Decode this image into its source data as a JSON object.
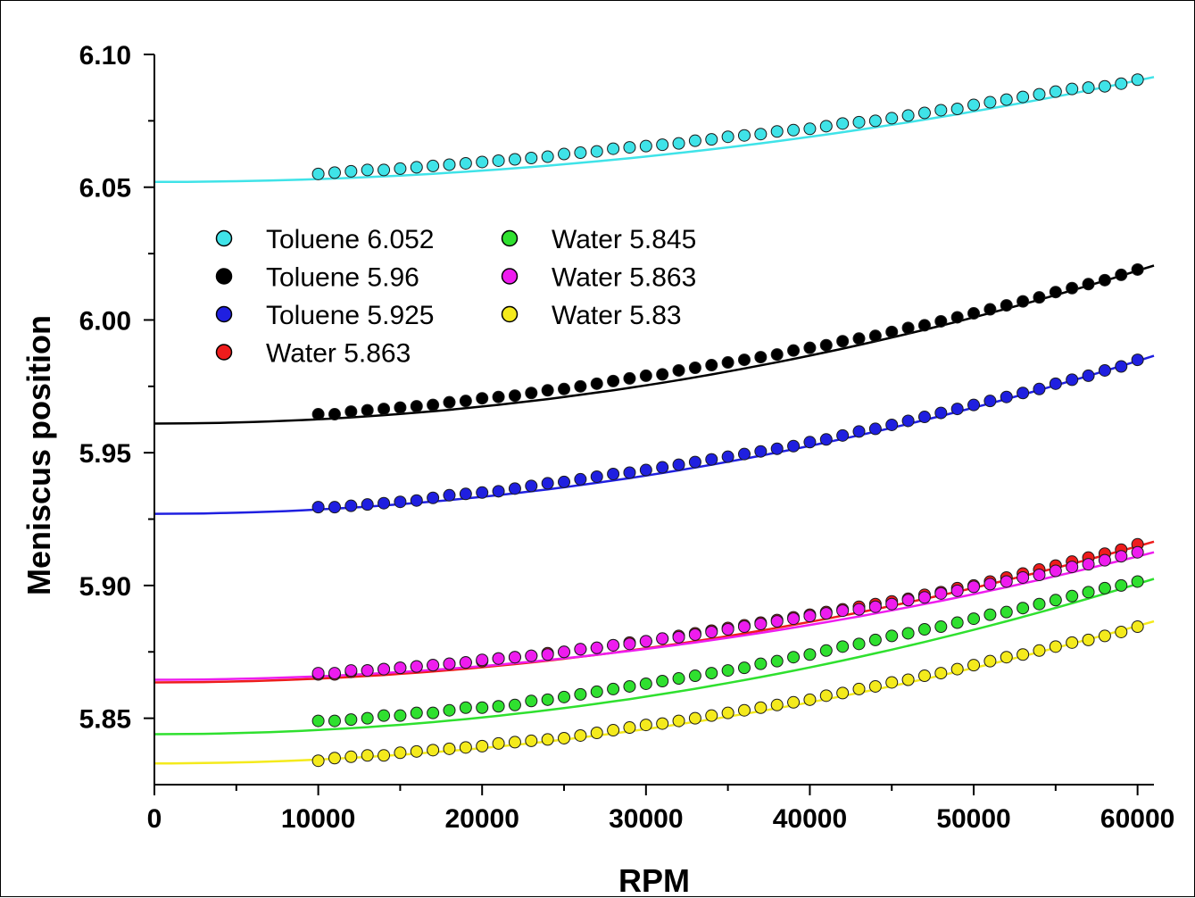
{
  "chart_data": {
    "type": "scatter",
    "title": "",
    "xlabel": "RPM",
    "ylabel": "Meniscus position",
    "xlim": [
      0,
      61000
    ],
    "ylim": [
      5.825,
      6.1
    ],
    "x_ticks": [
      0,
      10000,
      20000,
      30000,
      40000,
      50000,
      60000
    ],
    "x_tick_labels": [
      "0",
      "10000",
      "20000",
      "30000",
      "40000",
      "50000",
      "60000"
    ],
    "y_ticks": [
      5.85,
      5.9,
      5.95,
      6.0,
      6.05,
      6.1
    ],
    "y_tick_labels": [
      "5.85",
      "5.90",
      "5.95",
      "6.00",
      "6.05",
      "6.10"
    ],
    "grid": false,
    "legend_position": "upper-left",
    "legend_columns": 2,
    "x": [
      10000,
      11000,
      12000,
      13000,
      14000,
      15000,
      16000,
      17000,
      18000,
      19000,
      20000,
      21000,
      22000,
      23000,
      24000,
      25000,
      26000,
      27000,
      28000,
      29000,
      30000,
      31000,
      32000,
      33000,
      34000,
      35000,
      36000,
      37000,
      38000,
      39000,
      40000,
      41000,
      42000,
      43000,
      44000,
      45000,
      46000,
      47000,
      48000,
      49000,
      50000,
      51000,
      52000,
      53000,
      54000,
      55000,
      56000,
      57000,
      58000,
      59000,
      60000
    ],
    "series": [
      {
        "name": "Toluene 6.052",
        "color": "#3fe3e8",
        "fit": {
          "y0": 6.052,
          "y_end": 6.0915
        },
        "values": [
          6.055,
          6.0555,
          6.056,
          6.0565,
          6.0565,
          6.057,
          6.0575,
          6.058,
          6.0585,
          6.059,
          6.0595,
          6.06,
          6.0605,
          6.061,
          6.0615,
          6.0625,
          6.063,
          6.0635,
          6.0645,
          6.065,
          6.0655,
          6.066,
          6.0665,
          6.0675,
          6.068,
          6.069,
          6.0695,
          6.07,
          6.071,
          6.0715,
          6.072,
          6.073,
          6.074,
          6.0745,
          6.075,
          6.076,
          6.077,
          6.078,
          6.079,
          6.0795,
          6.081,
          6.082,
          6.083,
          6.084,
          6.085,
          6.086,
          6.087,
          6.0875,
          6.088,
          6.089,
          6.0905
        ]
      },
      {
        "name": "Toluene 5.96",
        "color": "#000000",
        "fit": {
          "y0": 5.961,
          "y_end": 6.0205
        },
        "values": [
          5.9645,
          5.9645,
          5.9655,
          5.966,
          5.9665,
          5.967,
          5.9675,
          5.968,
          5.969,
          5.9695,
          5.9705,
          5.971,
          5.9715,
          5.9725,
          5.9735,
          5.974,
          5.975,
          5.976,
          5.977,
          5.978,
          5.979,
          5.9795,
          5.981,
          5.982,
          5.983,
          5.984,
          5.985,
          5.986,
          5.987,
          5.9885,
          5.9895,
          5.9905,
          5.992,
          5.993,
          5.994,
          5.9955,
          5.997,
          5.998,
          5.9995,
          6.001,
          6.0025,
          6.004,
          6.0055,
          6.007,
          6.0085,
          6.0105,
          6.012,
          6.0135,
          6.015,
          6.017,
          6.019
        ]
      },
      {
        "name": "Toluene 5.925",
        "color": "#1f1fe0",
        "fit": {
          "y0": 5.927,
          "y_end": 5.9865
        },
        "values": [
          5.9295,
          5.9295,
          5.93,
          5.9305,
          5.931,
          5.9315,
          5.932,
          5.933,
          5.934,
          5.9345,
          5.935,
          5.9355,
          5.9365,
          5.9375,
          5.9385,
          5.939,
          5.94,
          5.941,
          5.942,
          5.9425,
          5.9435,
          5.9445,
          5.9455,
          5.9465,
          5.9475,
          5.9485,
          5.9495,
          5.9505,
          5.9515,
          5.9525,
          5.954,
          5.955,
          5.9565,
          5.958,
          5.959,
          5.9605,
          5.962,
          5.9635,
          5.965,
          5.9665,
          5.968,
          5.9695,
          5.971,
          5.9725,
          5.974,
          5.976,
          5.9775,
          5.979,
          5.981,
          5.9825,
          5.985
        ]
      },
      {
        "name": "Water 5.863",
        "color": "#ee1c1c",
        "fit": {
          "y0": 5.8635,
          "y_end": 5.9165
        },
        "values": [
          5.8665,
          5.8665,
          5.8675,
          5.868,
          5.8685,
          5.869,
          5.8695,
          5.87,
          5.8705,
          5.871,
          5.8715,
          5.8725,
          5.873,
          5.8735,
          5.8745,
          5.875,
          5.876,
          5.8765,
          5.8775,
          5.8785,
          5.879,
          5.88,
          5.881,
          5.882,
          5.883,
          5.884,
          5.885,
          5.886,
          5.887,
          5.888,
          5.889,
          5.89,
          5.891,
          5.892,
          5.893,
          5.894,
          5.895,
          5.8965,
          5.8975,
          5.899,
          5.9,
          5.9015,
          5.903,
          5.9045,
          5.906,
          5.9075,
          5.909,
          5.9105,
          5.912,
          5.9135,
          5.9155
        ]
      },
      {
        "name": "Water 5.845",
        "color": "#2fe02f",
        "fit": {
          "y0": 5.844,
          "y_end": 5.9025
        },
        "values": [
          5.849,
          5.849,
          5.8495,
          5.85,
          5.851,
          5.851,
          5.852,
          5.852,
          5.853,
          5.854,
          5.854,
          5.8545,
          5.855,
          5.8565,
          5.857,
          5.858,
          5.859,
          5.86,
          5.861,
          5.862,
          5.863,
          5.864,
          5.865,
          5.866,
          5.867,
          5.868,
          5.869,
          5.8705,
          5.8715,
          5.873,
          5.874,
          5.8755,
          5.877,
          5.878,
          5.8795,
          5.881,
          5.882,
          5.8835,
          5.8845,
          5.886,
          5.8875,
          5.889,
          5.89,
          5.8915,
          5.893,
          5.8945,
          5.896,
          5.8975,
          5.899,
          5.9,
          5.9015
        ]
      },
      {
        "name": "Water 5.863",
        "color": "#ee1cee",
        "fit": {
          "y0": 5.8645,
          "y_end": 5.9125
        },
        "values": [
          5.867,
          5.867,
          5.868,
          5.868,
          5.8685,
          5.869,
          5.8695,
          5.87,
          5.8705,
          5.871,
          5.872,
          5.8725,
          5.873,
          5.8735,
          5.874,
          5.875,
          5.876,
          5.8765,
          5.8775,
          5.878,
          5.879,
          5.88,
          5.8805,
          5.8815,
          5.8825,
          5.8835,
          5.8845,
          5.8855,
          5.8865,
          5.8875,
          5.8885,
          5.8895,
          5.8905,
          5.891,
          5.892,
          5.893,
          5.8945,
          5.8955,
          5.897,
          5.898,
          5.8995,
          5.9005,
          5.9015,
          5.903,
          5.904,
          5.9055,
          5.907,
          5.908,
          5.9095,
          5.911,
          5.9125
        ]
      },
      {
        "name": "Water 5.83",
        "color": "#f4ea1c",
        "fit": {
          "y0": 5.833,
          "y_end": 5.8865
        },
        "values": [
          5.834,
          5.835,
          5.8355,
          5.836,
          5.836,
          5.837,
          5.8375,
          5.838,
          5.8385,
          5.839,
          5.8395,
          5.8405,
          5.841,
          5.8415,
          5.842,
          5.8425,
          5.8435,
          5.8445,
          5.8455,
          5.8465,
          5.8475,
          5.848,
          5.849,
          5.85,
          5.851,
          5.852,
          5.853,
          5.854,
          5.855,
          5.856,
          5.857,
          5.8585,
          5.8595,
          5.861,
          5.862,
          5.8635,
          5.8645,
          5.866,
          5.867,
          5.8685,
          5.87,
          5.8715,
          5.873,
          5.874,
          5.8755,
          5.877,
          5.8785,
          5.8795,
          5.881,
          5.8825,
          5.8845
        ]
      }
    ]
  }
}
